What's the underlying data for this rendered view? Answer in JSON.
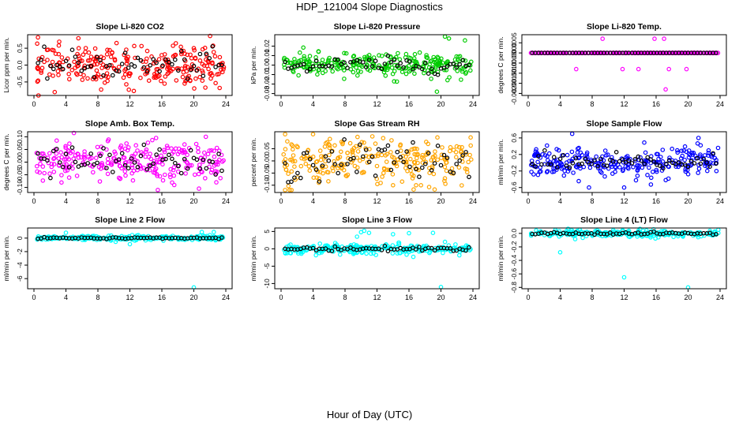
{
  "title": "HDP_121004  Slope Diagnostics",
  "xlabel": "Hour of Day (UTC)",
  "chart_data": [
    {
      "type": "scatter",
      "title": "Slope Li-820 CO2",
      "ylabel": "Licor ppm per min.",
      "xlim": [
        0,
        24
      ],
      "xticks": [
        0,
        4,
        8,
        12,
        16,
        20,
        24
      ],
      "ylim": [
        -0.9,
        0.9
      ],
      "yticks": [
        -0.5,
        0.0,
        0.5
      ],
      "ytick_labels": [
        "-0.5",
        "0.0",
        "0.5"
      ],
      "color": "#ff0000",
      "spread": 0.3,
      "min": -0.9,
      "max": 0.9,
      "black_spread": 0.2,
      "outliers": [
        [
          0.5,
          0.82
        ],
        [
          2.6,
          -0.8
        ],
        [
          20,
          0.5
        ]
      ]
    },
    {
      "type": "scatter",
      "title": "Slope Li-820 Pressure",
      "ylabel": "kPa per min.",
      "xlim": [
        0,
        24
      ],
      "xticks": [
        0,
        4,
        8,
        12,
        16,
        20,
        24
      ],
      "ylim": [
        -0.032,
        0.032
      ],
      "yticks": [
        -0.03,
        -0.02,
        -0.01,
        0.0,
        0.01,
        0.02
      ],
      "ytick_labels": [
        "-0.03",
        "-0.02",
        "-0.01",
        "0.00",
        "0.01",
        "0.02"
      ],
      "color": "#00cc00",
      "spread": 0.006,
      "min": -0.032,
      "max": 0.032,
      "black_spread": 0.004,
      "outliers": [
        [
          19.5,
          -0.028
        ],
        [
          20.5,
          0.03
        ],
        [
          21,
          0.028
        ],
        [
          23,
          0.026
        ]
      ]
    },
    {
      "type": "scatter",
      "title": "Slope Li-820 Temp.",
      "ylabel": "degrees C per min.",
      "xlim": [
        0,
        24
      ],
      "xticks": [
        0,
        4,
        8,
        12,
        16,
        20,
        24
      ],
      "ylim": [
        -0.0021,
        0.0009
      ],
      "yticks": [
        -0.002,
        -0.0015,
        -0.001,
        -0.0005,
        0.0,
        0.0005
      ],
      "ytick_labels": [
        "-0.0020",
        "-0.0015",
        "-0.0010",
        "-0.0005",
        "0.0000",
        "0.0005"
      ],
      "color": "#ff00ff",
      "spread": 0.0,
      "min": -0.0021,
      "max": 0.0009,
      "black_spread": 0.0,
      "outliers": [
        [
          9.3,
          0.0007
        ],
        [
          15.8,
          0.0007
        ],
        [
          17,
          0.0007
        ],
        [
          6,
          -0.0008
        ],
        [
          13.8,
          -0.0008
        ],
        [
          17.6,
          -0.0008
        ],
        [
          17.2,
          -0.0018
        ],
        [
          11.8,
          -0.0008
        ],
        [
          19.8,
          -0.0008
        ]
      ]
    },
    {
      "type": "scatter",
      "title": "Slope Amb. Box Temp.",
      "ylabel": "degrees C per min.",
      "xlim": [
        0,
        24
      ],
      "xticks": [
        0,
        4,
        8,
        12,
        16,
        20,
        24
      ],
      "ylim": [
        -0.12,
        0.12
      ],
      "yticks": [
        -0.1,
        -0.05,
        0.0,
        0.05,
        0.1
      ],
      "ytick_labels": [
        "-0.10",
        "-0.05",
        "0.00",
        "0.05",
        "0.10"
      ],
      "color": "#ff00ff",
      "spread": 0.04,
      "min": -0.12,
      "max": 0.12,
      "black_spread": 0.03,
      "outliers": [
        [
          5,
          0.115
        ],
        [
          15.5,
          -0.11
        ],
        [
          21.5,
          0.1
        ]
      ]
    },
    {
      "type": "scatter",
      "title": "Slope Gas Stream RH",
      "ylabel": "percent per min.",
      "xlim": [
        0,
        24
      ],
      "xticks": [
        0,
        4,
        8,
        12,
        16,
        20,
        24
      ],
      "ylim": [
        -0.13,
        0.12
      ],
      "yticks": [
        -0.1,
        -0.05,
        0.0,
        0.05
      ],
      "ytick_labels": [
        "-0.10",
        "-0.05",
        "0.00",
        "0.05"
      ],
      "color": "#ffa500",
      "spread": 0.045,
      "min": -0.12,
      "max": 0.11,
      "black_spread": 0.04,
      "outliers": [
        [
          0.5,
          0.11
        ],
        [
          4,
          0.11
        ],
        [
          0.5,
          -0.12
        ],
        [
          14,
          -0.1
        ],
        [
          17.5,
          -0.1
        ]
      ]
    },
    {
      "type": "scatter",
      "title": "Slope Sample Flow",
      "ylabel": "ml/min per min.",
      "xlim": [
        0,
        24
      ],
      "xticks": [
        0,
        4,
        8,
        12,
        16,
        20,
        24
      ],
      "ylim": [
        -0.72,
        0.75
      ],
      "yticks": [
        -0.6,
        -0.2,
        0.2,
        0.6
      ],
      "ytick_labels": [
        "-0.6",
        "-0.2",
        "0.2",
        "0.6"
      ],
      "color": "#0000ff",
      "spread": 0.18,
      "min": -0.7,
      "max": 0.72,
      "black_spread": 0.1,
      "outliers": [
        [
          5.5,
          0.7
        ],
        [
          7.6,
          -0.6
        ],
        [
          12,
          -0.6
        ],
        [
          21.3,
          0.6
        ]
      ]
    },
    {
      "type": "scatter",
      "title": "Slope Line 2 Flow",
      "ylabel": "ml/min per min.",
      "xlim": [
        0,
        24
      ],
      "xticks": [
        0,
        4,
        8,
        12,
        16,
        20,
        24
      ],
      "ylim": [
        -7.5,
        1.5
      ],
      "yticks": [
        -6,
        -4,
        -2,
        0
      ],
      "ytick_labels": [
        "-6",
        "-4",
        "-2",
        "0"
      ],
      "color": "#00ffff",
      "spread": 0.18,
      "min": -7.5,
      "max": 1.5,
      "black_spread": 0.05,
      "outliers": [
        [
          20,
          -7.3
        ],
        [
          12,
          -0.9
        ],
        [
          4,
          0.8
        ],
        [
          21,
          0.9
        ],
        [
          22.5,
          0.9
        ]
      ]
    },
    {
      "type": "scatter",
      "title": "Slope Line 3 Flow",
      "ylabel": "ml/min per min.",
      "xlim": [
        0,
        24
      ],
      "xticks": [
        0,
        4,
        8,
        12,
        16,
        20,
        24
      ],
      "ylim": [
        -11.5,
        6
      ],
      "yticks": [
        -10,
        -5,
        0,
        5
      ],
      "ytick_labels": [
        "-10",
        "-5",
        "0",
        "5"
      ],
      "color": "#00ffff",
      "spread": 0.7,
      "min": -11.5,
      "max": 6,
      "black_spread": 0.3,
      "outliers": [
        [
          20,
          -11
        ],
        [
          10,
          4.8
        ],
        [
          10.4,
          5.2
        ],
        [
          11,
          4.6
        ],
        [
          14,
          4.2
        ],
        [
          9.5,
          3.5
        ],
        [
          16,
          4.5
        ],
        [
          19,
          4.6
        ],
        [
          20.5,
          2
        ]
      ]
    },
    {
      "type": "scatter",
      "title": "Slope Line 4 (LT) Flow",
      "ylabel": "ml/min per min.",
      "xlim": [
        0,
        24
      ],
      "xticks": [
        0,
        4,
        8,
        12,
        16,
        20,
        24
      ],
      "ylim": [
        -0.82,
        0.08
      ],
      "yticks": [
        -0.8,
        -0.6,
        -0.4,
        -0.2,
        0.0
      ],
      "ytick_labels": [
        "-0.8",
        "-0.6",
        "-0.4",
        "-0.2",
        "0.0"
      ],
      "color": "#00ffff",
      "spread": 0.025,
      "min": -0.82,
      "max": 0.08,
      "black_spread": 0.01,
      "outliers": [
        [
          4,
          -0.28
        ],
        [
          12,
          -0.65
        ],
        [
          20,
          -0.8
        ]
      ]
    }
  ]
}
